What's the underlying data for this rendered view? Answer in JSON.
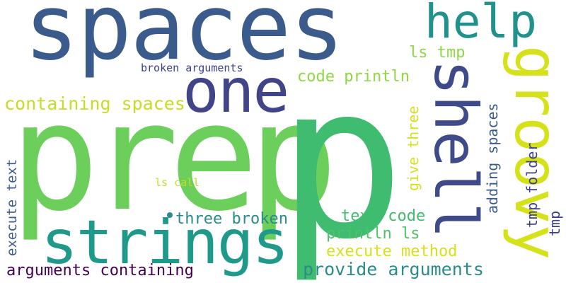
{
  "words": {
    "spaces": {
      "text": "spaces",
      "color": "#3b5b8c"
    },
    "prep": {
      "text": "prep",
      "color": "#6ccf5b"
    },
    "p_green": {
      "text": "p",
      "color": "#3fbc6f"
    },
    "strings": {
      "text": "strings",
      "color": "#1f9a8a"
    },
    "one": {
      "text": "one",
      "color": "#414487"
    },
    "help": {
      "text": "help",
      "color": "#21918c"
    },
    "groovy": {
      "text": "groovy",
      "color": "#d5e21a"
    },
    "shell": {
      "text": "shell",
      "color": "#3e4a89"
    },
    "containing_spaces": {
      "text": "containing spaces",
      "color": "#c2df23"
    },
    "code_println": {
      "text": "code println",
      "color": "#8fd744"
    },
    "ls_tmp": {
      "text": "ls tmp",
      "color": "#8fd744"
    },
    "broken_arguments": {
      "text": "broken arguments",
      "color": "#3b3f8c"
    },
    "execute_text": {
      "text": "execute text",
      "color": "#3b5b8c"
    },
    "ls_call": {
      "text": "ls call",
      "color": "#c2df23"
    },
    "three_broken": {
      "text": "three broken",
      "color": "#2a8b8a"
    },
    "text_code": {
      "text": "text code",
      "color": "#3fbc6f"
    },
    "println_ls": {
      "text": "println ls",
      "color": "#4cc26c"
    },
    "execute_method": {
      "text": "execute method",
      "color": "#d5e21a"
    },
    "provide_arguments": {
      "text": "provide arguments",
      "color": "#2b8c8c"
    },
    "arguments_containing": {
      "text": "arguments containing",
      "color": "#440154"
    },
    "give_three": {
      "text": "give three",
      "color": "#d5e21a"
    },
    "adding_spaces": {
      "text": "adding spaces",
      "color": "#3b5b8c"
    },
    "tmp_folder": {
      "text": "tmp folder",
      "color": "#3b3f8c"
    },
    "tmp_folder_tail": {
      "text": "tmp",
      "color": "#3b3f8c"
    }
  },
  "dot": {
    "color": "#2a8b8a"
  }
}
